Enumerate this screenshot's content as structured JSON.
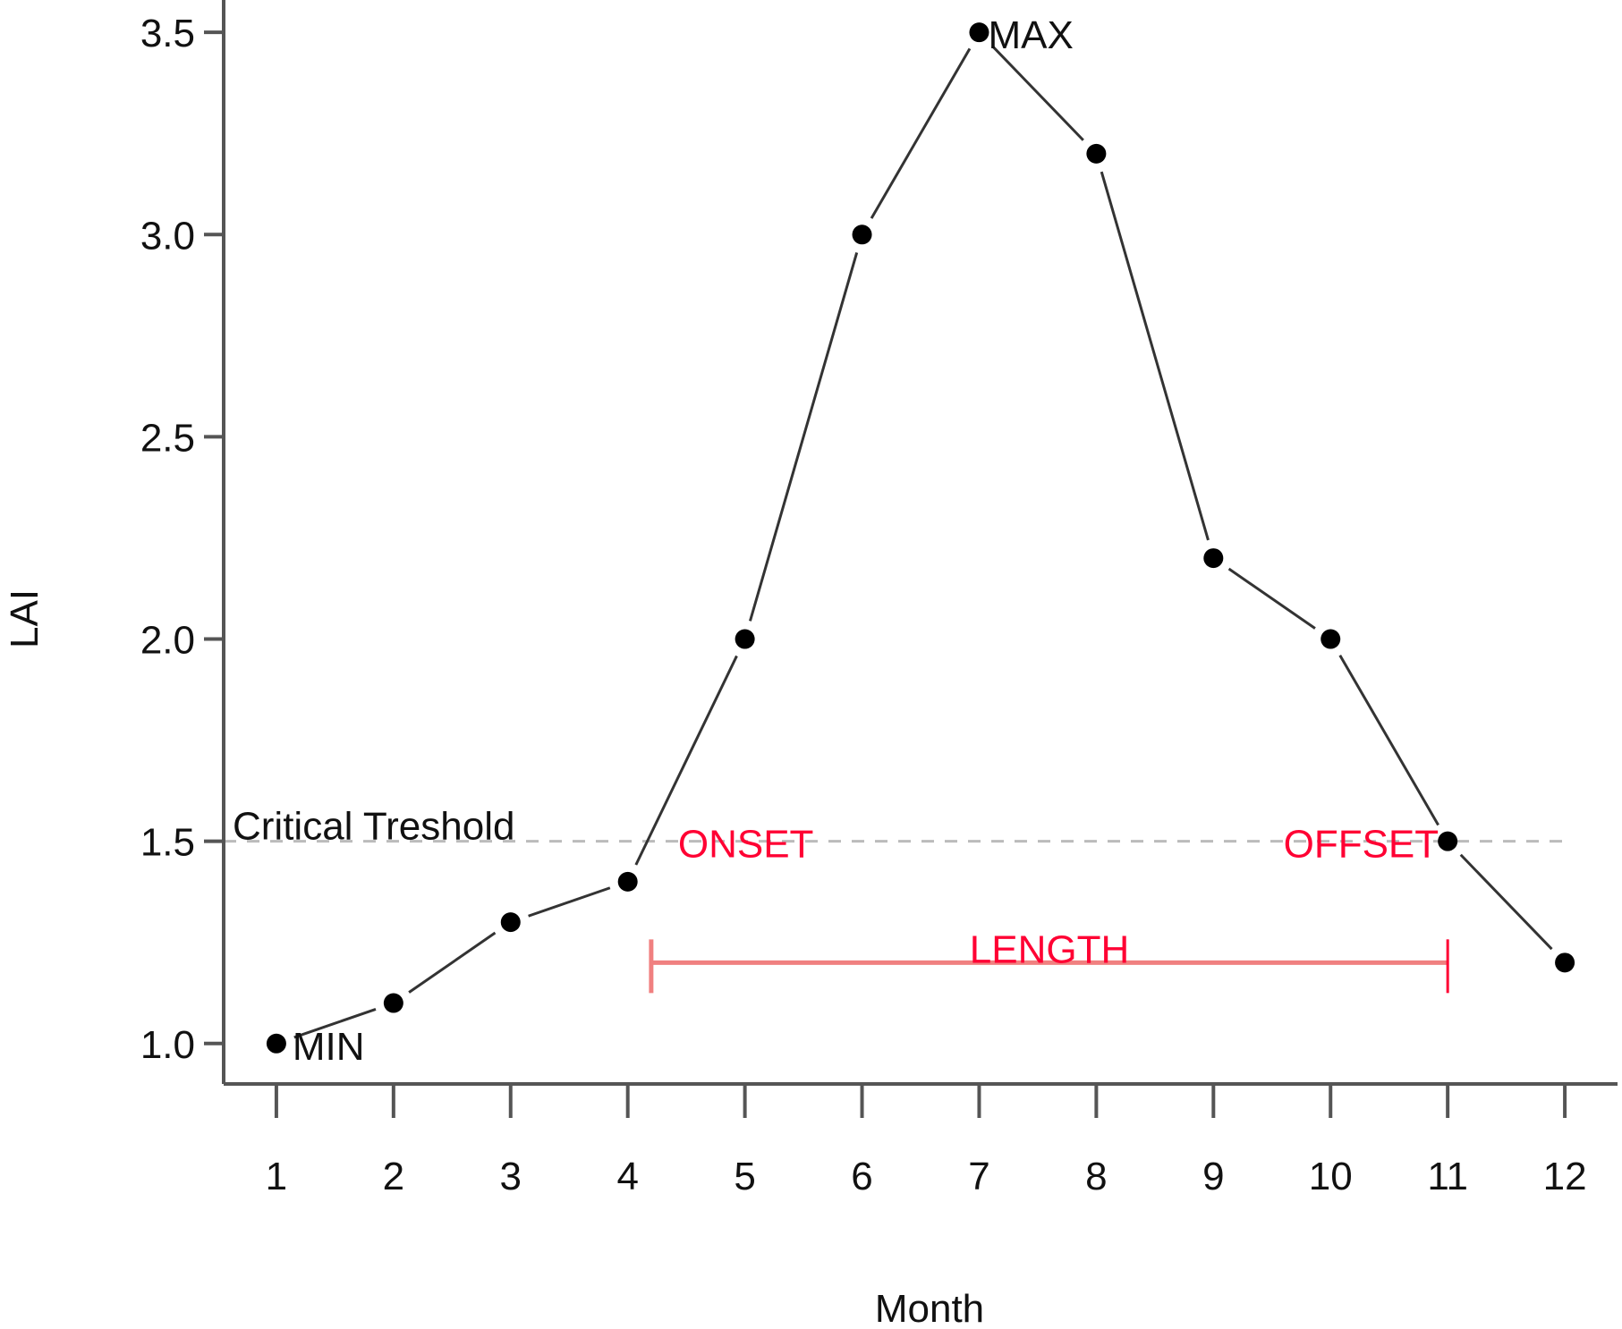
{
  "chart_data": {
    "type": "line",
    "xlabel": "Month",
    "ylabel": "LAI",
    "xlim": [
      0.55,
      12.45
    ],
    "ylim": [
      0.9,
      3.58
    ],
    "x_ticks": [
      1,
      2,
      3,
      4,
      5,
      6,
      7,
      8,
      9,
      10,
      11,
      12
    ],
    "x_tick_labels": [
      "1",
      "2",
      "3",
      "4",
      "5",
      "6",
      "7",
      "8",
      "9",
      "10",
      "11",
      "12"
    ],
    "y_ticks": [
      1.0,
      1.5,
      2.0,
      2.5,
      3.0,
      3.5
    ],
    "y_tick_labels": [
      "1.0",
      "1.5",
      "2.0",
      "2.5",
      "3.0",
      "3.5"
    ],
    "series": [
      {
        "name": "LAI",
        "x": [
          1,
          2,
          3,
          4,
          5,
          6,
          7,
          8,
          9,
          10,
          11,
          12
        ],
        "values": [
          1.0,
          1.1,
          1.3,
          1.4,
          2.0,
          3.0,
          3.5,
          3.2,
          2.2,
          2.0,
          1.5,
          1.2
        ],
        "color": "#000000"
      }
    ],
    "threshold": {
      "value": 1.5,
      "label": "Critical Treshold",
      "color": "#bbbbbb"
    },
    "annotations": {
      "min": {
        "x": 1,
        "y": 1.0,
        "label": "MIN"
      },
      "max": {
        "x": 7,
        "y": 3.5,
        "label": "MAX"
      },
      "onset": {
        "x": 4.2,
        "y": 1.5,
        "label": "ONSET"
      },
      "offset": {
        "x": 11,
        "y": 1.5,
        "label": "OFFSET"
      },
      "length": {
        "x_start": 4.2,
        "x_end": 11,
        "y": 1.2,
        "label": "LENGTH"
      }
    },
    "accent_color": "#ff0033",
    "length_bar_color": "#f08080"
  }
}
